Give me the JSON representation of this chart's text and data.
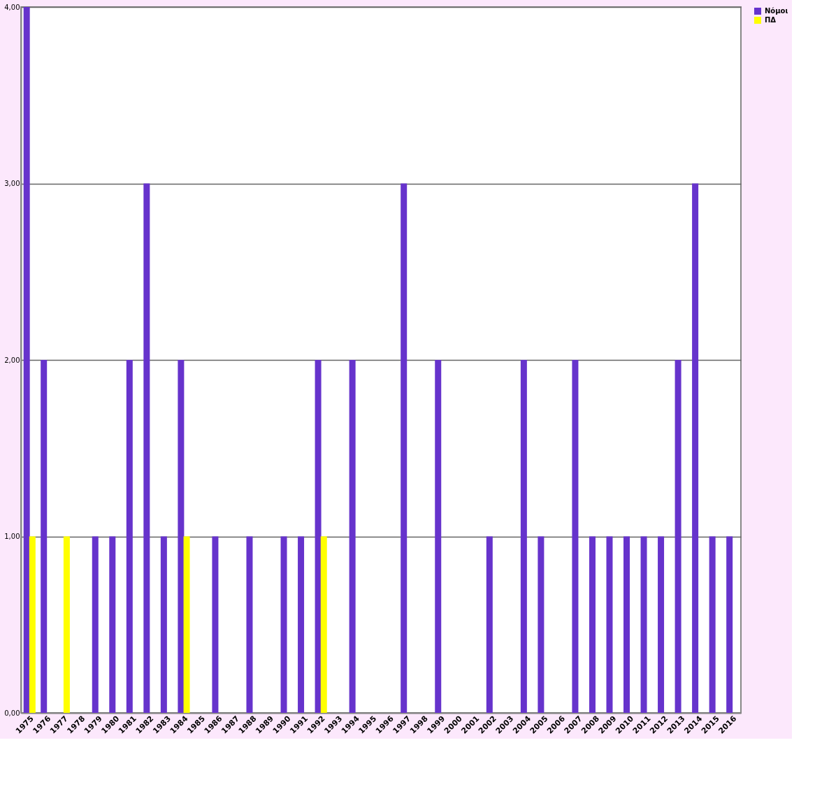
{
  "chart_data": {
    "type": "bar",
    "categories": [
      "1975",
      "1976",
      "1977",
      "1978",
      "1979",
      "1980",
      "1981",
      "1982",
      "1983",
      "1984",
      "1985",
      "1986",
      "1987",
      "1988",
      "1989",
      "1990",
      "1991",
      "1992",
      "1993",
      "1994",
      "1995",
      "1996",
      "1997",
      "1998",
      "1999",
      "2000",
      "2001",
      "2002",
      "2003",
      "2004",
      "2005",
      "2006",
      "2007",
      "2008",
      "2009",
      "2010",
      "2011",
      "2012",
      "2013",
      "2014",
      "2015",
      "2016"
    ],
    "series": [
      {
        "name": "Νόμοι",
        "color": "#6633cc",
        "values": [
          4,
          2,
          null,
          null,
          1,
          1,
          2,
          3,
          1,
          2,
          null,
          1,
          null,
          1,
          null,
          1,
          1,
          2,
          null,
          2,
          null,
          null,
          3,
          null,
          2,
          null,
          null,
          1,
          null,
          2,
          1,
          null,
          2,
          1,
          1,
          1,
          1,
          1,
          2,
          3,
          1,
          1
        ]
      },
      {
        "name": "ΠΔ",
        "color": "#ffff00",
        "values": [
          1,
          null,
          1,
          null,
          null,
          null,
          null,
          null,
          null,
          1,
          null,
          null,
          null,
          null,
          null,
          null,
          null,
          1,
          null,
          null,
          null,
          null,
          null,
          null,
          null,
          null,
          null,
          null,
          null,
          null,
          null,
          null,
          null,
          null,
          null,
          null,
          null,
          null,
          null,
          null,
          null,
          null
        ]
      }
    ],
    "ylim": [
      0,
      4
    ],
    "yticks": [
      {
        "value": 0,
        "label": "0,00"
      },
      {
        "value": 1,
        "label": "1,00"
      },
      {
        "value": 2,
        "label": "2,00"
      },
      {
        "value": 3,
        "label": "3,00"
      },
      {
        "value": 4,
        "label": "4,00"
      }
    ],
    "grid": "y",
    "legend": "right"
  }
}
